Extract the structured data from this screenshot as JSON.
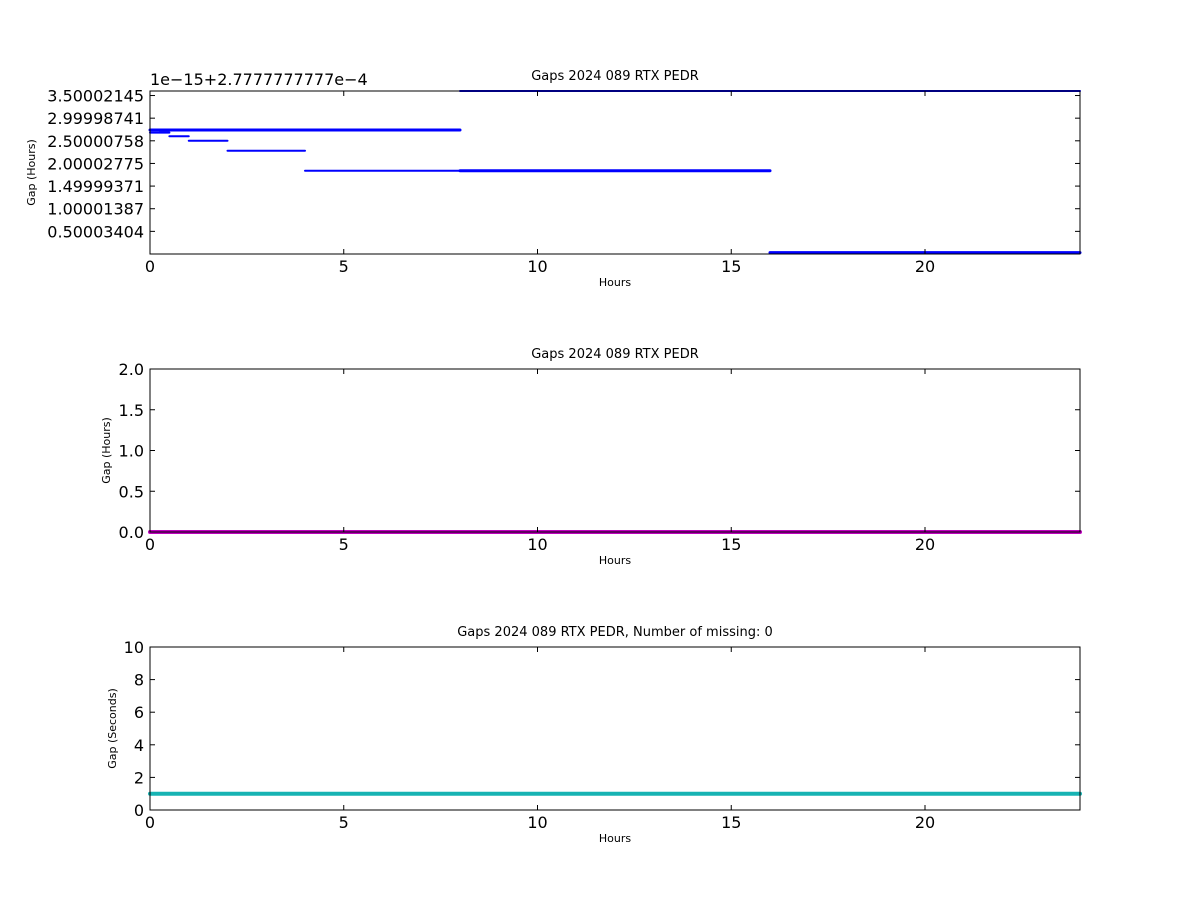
{
  "chart_data": [
    {
      "type": "line",
      "title": "Gaps 2024 089 RTX  PEDR",
      "xlabel": "Hours",
      "ylabel": "Gap (Hours)",
      "offset_text": "1e−15+2.7777777777e−4",
      "xlim": [
        0,
        24
      ],
      "ylim": [
        0.0,
        3.6
      ],
      "x_ticks": [
        "0",
        "5",
        "10",
        "15",
        "20"
      ],
      "y_ticks": [
        {
          "label": "0.50003404",
          "value": 0.50003404
        },
        {
          "label": "1.00001387",
          "value": 1.00001387
        },
        {
          "label": "1.49999371",
          "value": 1.49999371
        },
        {
          "label": "2.00002775",
          "value": 2.00002775
        },
        {
          "label": "2.50000758",
          "value": 2.50000758
        },
        {
          "label": "2.99998741",
          "value": 2.99998741
        },
        {
          "label": "3.50002145",
          "value": 3.50002145
        }
      ],
      "color": "#0000ff",
      "segments": [
        {
          "x": [
            8,
            24
          ],
          "y": 3.6,
          "width": 2
        },
        {
          "x": [
            0,
            8
          ],
          "y": 2.74,
          "width": 3
        },
        {
          "x": [
            0,
            0.5
          ],
          "y": 2.68,
          "width": 2
        },
        {
          "x": [
            0.25,
            0.5
          ],
          "y": 2.72,
          "width": 2
        },
        {
          "x": [
            0.5,
            1
          ],
          "y": 2.6,
          "width": 2
        },
        {
          "x": [
            1,
            2
          ],
          "y": 2.5,
          "width": 2
        },
        {
          "x": [
            2,
            4
          ],
          "y": 2.28,
          "width": 2
        },
        {
          "x": [
            4,
            8
          ],
          "y": 1.84,
          "width": 2
        },
        {
          "x": [
            8,
            16
          ],
          "y": 1.84,
          "width": 3
        },
        {
          "x": [
            16,
            24
          ],
          "y": 0.03,
          "width": 3
        }
      ]
    },
    {
      "type": "line",
      "title": "Gaps 2024 089 RTX  PEDR",
      "xlabel": "Hours",
      "ylabel": "Gap (Hours)",
      "xlim": [
        0,
        24
      ],
      "ylim": [
        0,
        2
      ],
      "x_ticks": [
        "0",
        "5",
        "10",
        "15",
        "20"
      ],
      "y_ticks": [
        {
          "label": "0.0",
          "value": 0
        },
        {
          "label": "0.5",
          "value": 0.5
        },
        {
          "label": "1.0",
          "value": 1
        },
        {
          "label": "1.5",
          "value": 1.5
        },
        {
          "label": "2.0",
          "value": 2
        }
      ],
      "color": "#bf00bf",
      "segments": [
        {
          "x": [
            0,
            24
          ],
          "y": 0.0,
          "width": 4
        }
      ]
    },
    {
      "type": "line",
      "title": "Gaps 2024 089 RTX  PEDR, Number of missing: 0",
      "xlabel": "Hours",
      "ylabel": "Gap (Seconds)",
      "xlim": [
        0,
        24
      ],
      "ylim": [
        0,
        10
      ],
      "x_ticks": [
        "0",
        "5",
        "10",
        "15",
        "20"
      ],
      "y_ticks": [
        {
          "label": "0",
          "value": 0
        },
        {
          "label": "2",
          "value": 2
        },
        {
          "label": "4",
          "value": 4
        },
        {
          "label": "6",
          "value": 6
        },
        {
          "label": "8",
          "value": 8
        },
        {
          "label": "10",
          "value": 10
        }
      ],
      "color": "#17b3b3",
      "segments": [
        {
          "x": [
            0,
            24
          ],
          "y": 1.0,
          "width": 4
        }
      ]
    }
  ]
}
